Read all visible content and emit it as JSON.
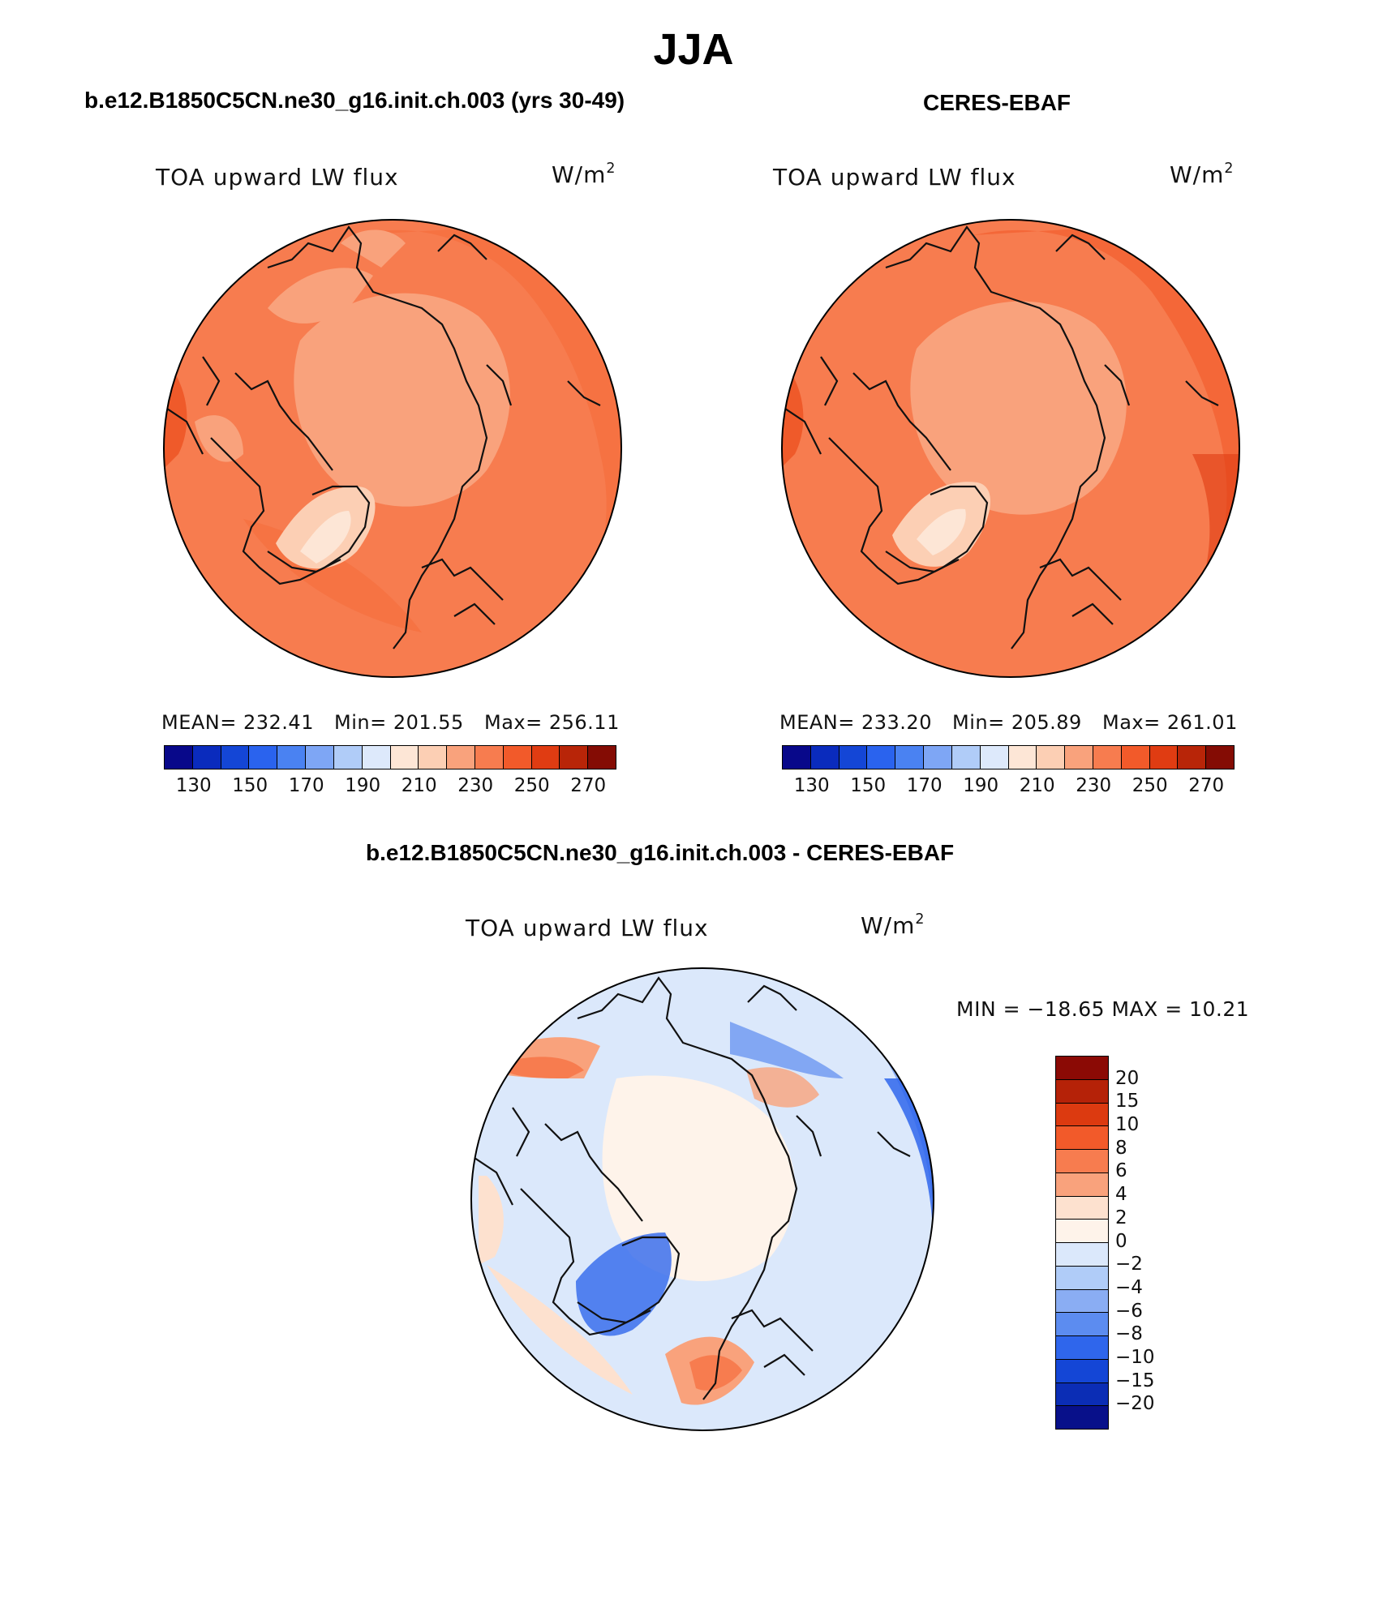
{
  "title": "JJA",
  "panels": [
    {
      "id": "model",
      "heading": "b.e12.B1850C5CN.ne30_g16.init.ch.003 (yrs 30-49)",
      "variable": "TOA upward LW flux",
      "units_base": "W/m",
      "units_exp": "2",
      "stats": {
        "mean": "MEAN= 232.41",
        "min": "Min= 201.55",
        "max": "Max= 256.11"
      }
    },
    {
      "id": "obs",
      "heading": "CERES-EBAF",
      "variable": "TOA upward LW flux",
      "units_base": "W/m",
      "units_exp": "2",
      "stats": {
        "mean": "MEAN= 233.20",
        "min": "Min= 205.89",
        "max": "Max= 261.01"
      }
    },
    {
      "id": "diff",
      "heading": "b.e12.B1850C5CN.ne30_g16.init.ch.003 - CERES-EBAF",
      "variable": "TOA upward LW flux",
      "units_base": "W/m",
      "units_exp": "2",
      "minmax": "MIN = −18.65 MAX =  10.21"
    }
  ],
  "colorbar_main": {
    "colors": [
      "#08088a",
      "#0a2bbd",
      "#1446d6",
      "#2a63ee",
      "#4a82f2",
      "#7ea6f5",
      "#b0ccf8",
      "#dde9fb",
      "#fde6d6",
      "#fccfb4",
      "#f9a27c",
      "#f77c4f",
      "#f25a2a",
      "#e03c12",
      "#b82508",
      "#840c04"
    ],
    "tick_labels": [
      "130",
      "150",
      "170",
      "190",
      "210",
      "230",
      "250",
      "270"
    ]
  },
  "colorbar_diff": {
    "colors": [
      "#8b0a05",
      "#b52208",
      "#dc3a10",
      "#f25a2a",
      "#f77c4f",
      "#f9a27c",
      "#fde1cf",
      "#fef3ea",
      "#dbe8fb",
      "#b0ccf8",
      "#8aadf3",
      "#5c8cf0",
      "#2f66ec",
      "#1446d6",
      "#0b2db5",
      "#08108a"
    ],
    "tick_labels": [
      "20",
      "15",
      "10",
      "8",
      "6",
      "4",
      "2",
      "0",
      "−2",
      "−4",
      "−6",
      "−8",
      "−10",
      "−15",
      "−20"
    ]
  }
}
